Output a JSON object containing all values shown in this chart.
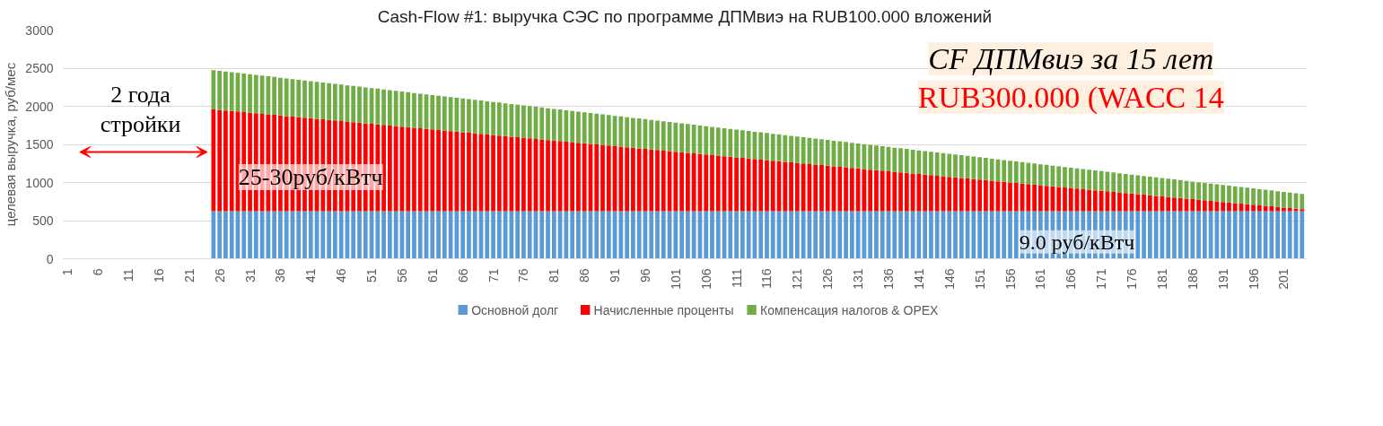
{
  "chart_data": {
    "type": "bar",
    "stacked": true,
    "title": "Cash-Flow #1: выручка СЭС по программе ДПМвиэ на RUB100.000 вложений",
    "ylabel": "целевая выручка, руб/мес",
    "categories": [
      "1",
      null,
      null,
      null,
      null,
      "6",
      null,
      null,
      null,
      null,
      "11",
      null,
      null,
      null,
      null,
      "16",
      null,
      null,
      null,
      null,
      "21",
      null,
      null,
      null,
      null,
      "26",
      null,
      null,
      null,
      null,
      "31",
      null,
      null,
      null,
      null,
      "36",
      null,
      null,
      null,
      null,
      "41",
      null,
      null,
      null,
      null,
      "46",
      null,
      null,
      null,
      null,
      "51",
      null,
      null,
      null,
      null,
      "56",
      null,
      null,
      null,
      null,
      "61",
      null,
      null,
      null,
      null,
      "66",
      null,
      null,
      null,
      null,
      "71",
      null,
      null,
      null,
      null,
      "76",
      null,
      null,
      null,
      null,
      "81",
      null,
      null,
      null,
      null,
      "86",
      null,
      null,
      null,
      null,
      "91",
      null,
      null,
      null,
      null,
      "96",
      null,
      null,
      null,
      null,
      "101",
      null,
      null,
      null,
      null,
      "106",
      null,
      null,
      null,
      null,
      "111",
      null,
      null,
      null,
      null,
      "116",
      null,
      null,
      null,
      null,
      "121",
      null,
      null,
      null,
      null,
      "126",
      null,
      null,
      null,
      null,
      "131",
      null,
      null,
      null,
      null,
      "136",
      null,
      null,
      null,
      null,
      "141",
      null,
      null,
      null,
      null,
      "146",
      null,
      null,
      null,
      null,
      "151",
      null,
      null,
      null,
      null,
      "156",
      null,
      null,
      null,
      null,
      "161",
      null,
      null,
      null,
      null,
      "166",
      null,
      null,
      null,
      null,
      "171",
      null,
      null,
      null,
      null,
      "176",
      null,
      null,
      null,
      null,
      "181",
      null,
      null,
      null,
      null,
      "186",
      null,
      null,
      null,
      null,
      "191",
      null,
      null,
      null,
      null,
      "196",
      null,
      null,
      null,
      null,
      "201",
      null,
      null,
      null
    ],
    "series": [
      {
        "name": "Основной долг",
        "color": "#5b9bd5",
        "values": [
          null,
          null,
          null,
          null,
          null,
          null,
          null,
          null,
          null,
          null,
          null,
          null,
          null,
          null,
          null,
          null,
          null,
          null,
          null,
          null,
          null,
          null,
          null,
          null,
          625,
          625,
          625,
          625,
          625,
          625,
          625,
          625,
          625,
          625,
          625,
          625,
          625,
          625,
          625,
          625,
          625,
          625,
          625,
          625,
          625,
          625,
          625,
          625,
          625,
          625,
          625,
          625,
          625,
          625,
          625,
          625,
          625,
          625,
          625,
          625,
          625,
          625,
          625,
          625,
          625,
          625,
          625,
          625,
          625,
          625,
          625,
          625,
          625,
          625,
          625,
          625,
          625,
          625,
          625,
          625,
          625,
          625,
          625,
          625,
          625,
          625,
          625,
          625,
          625,
          625,
          625,
          625,
          625,
          625,
          625,
          625,
          625,
          625,
          625,
          625,
          625,
          625,
          625,
          625,
          625,
          625,
          625,
          625,
          625,
          625,
          625,
          625,
          625,
          625,
          625,
          625,
          625,
          625,
          625,
          625,
          625,
          625,
          625,
          625,
          625,
          625,
          625,
          625,
          625,
          625,
          625,
          625,
          625,
          625,
          625,
          625,
          625,
          625,
          625,
          625,
          625,
          625,
          625,
          625,
          625,
          625,
          625,
          625,
          625,
          625,
          625,
          625,
          625,
          625,
          625,
          625,
          625,
          625,
          625,
          625,
          625,
          625,
          625,
          625,
          625,
          625,
          625,
          625,
          625,
          625,
          625,
          625,
          625,
          625,
          625,
          625,
          625,
          625,
          625,
          625,
          625,
          625,
          625,
          625,
          625,
          625,
          625,
          625,
          625,
          625,
          625,
          625,
          625,
          625,
          625,
          625,
          625,
          625,
          625,
          625,
          625,
          625,
          625,
          625
        ]
      },
      {
        "name": "Начисленные проценты",
        "color": "#ff0000",
        "values": [
          null,
          null,
          null,
          null,
          null,
          null,
          null,
          null,
          null,
          null,
          null,
          null,
          null,
          null,
          null,
          null,
          null,
          null,
          null,
          null,
          null,
          null,
          null,
          null,
          1335,
          1328,
          1320,
          1313,
          1306,
          1298,
          1291,
          1284,
          1276,
          1269,
          1262,
          1255,
          1247,
          1240,
          1233,
          1225,
          1218,
          1211,
          1203,
          1196,
          1189,
          1182,
          1174,
          1167,
          1160,
          1152,
          1145,
          1138,
          1130,
          1123,
          1115,
          1108,
          1101,
          1093,
          1086,
          1079,
          1071,
          1064,
          1057,
          1049,
          1042,
          1035,
          1027,
          1020,
          1013,
          1005,
          998,
          991,
          983,
          976,
          969,
          962,
          954,
          947,
          940,
          932,
          925,
          918,
          910,
          903,
          896,
          889,
          881,
          874,
          867,
          859,
          852,
          845,
          837,
          830,
          823,
          816,
          808,
          801,
          794,
          786,
          779,
          772,
          764,
          757,
          749,
          742,
          735,
          727,
          720,
          713,
          705,
          698,
          691,
          683,
          676,
          669,
          661,
          654,
          647,
          639,
          632,
          625,
          617,
          610,
          603,
          596,
          588,
          581,
          574,
          566,
          559,
          552,
          544,
          537,
          530,
          523,
          515,
          508,
          501,
          493,
          486,
          479,
          471,
          464,
          457,
          450,
          442,
          435,
          428,
          420,
          413,
          406,
          398,
          391,
          383,
          376,
          369,
          361,
          354,
          347,
          339,
          332,
          325,
          317,
          310,
          303,
          295,
          288,
          281,
          273,
          266,
          259,
          251,
          244,
          237,
          230,
          222,
          215,
          208,
          200,
          193,
          186,
          178,
          171,
          164,
          157,
          149,
          142,
          135,
          127,
          120,
          113,
          105,
          98,
          91,
          84,
          76,
          69,
          62,
          54,
          47,
          40,
          32,
          25
        ]
      },
      {
        "name": "Компенсация налогов & OPEX",
        "color": "#70ad47",
        "values": [
          null,
          null,
          null,
          null,
          null,
          null,
          null,
          null,
          null,
          null,
          null,
          null,
          null,
          null,
          null,
          null,
          null,
          null,
          null,
          null,
          null,
          null,
          null,
          null,
          515,
          513,
          511,
          510,
          508,
          506,
          504,
          503,
          501,
          499,
          497,
          495,
          493,
          492,
          490,
          488,
          486,
          485,
          483,
          481,
          480,
          478,
          476,
          475,
          473,
          471,
          469,
          468,
          466,
          464,
          462,
          460,
          458,
          457,
          455,
          453,
          451,
          450,
          448,
          446,
          445,
          443,
          441,
          440,
          438,
          436,
          434,
          433,
          431,
          429,
          427,
          425,
          423,
          422,
          420,
          418,
          416,
          415,
          413,
          411,
          409,
          407,
          405,
          404,
          402,
          400,
          398,
          397,
          395,
          393,
          392,
          390,
          388,
          387,
          385,
          383,
          381,
          380,
          378,
          376,
          374,
          372,
          370,
          369,
          367,
          365,
          363,
          362,
          360,
          358,
          357,
          355,
          353,
          352,
          350,
          348,
          346,
          345,
          343,
          341,
          339,
          337,
          335,
          334,
          332,
          330,
          328,
          327,
          325,
          323,
          321,
          319,
          317,
          316,
          314,
          312,
          310,
          309,
          307,
          305,
          304,
          302,
          300,
          299,
          297,
          295,
          293,
          292,
          290,
          288,
          286,
          284,
          282,
          281,
          279,
          277,
          275,
          274,
          272,
          270,
          269,
          267,
          265,
          264,
          262,
          260,
          258,
          257,
          255,
          253,
          251,
          249,
          247,
          246,
          244,
          242,
          240,
          239,
          237,
          235,
          233,
          231,
          229,
          228,
          226,
          224,
          222,
          221,
          219,
          217,
          216,
          214,
          212,
          211,
          209,
          207,
          205,
          204,
          202,
          200
        ]
      }
    ],
    "ylim": [
      0,
      3000
    ],
    "yticks": [
      0,
      500,
      1000,
      1500,
      2000,
      2500,
      3000
    ],
    "grid": "y",
    "legend": "bottom",
    "annotations": [
      "2 года\nстройки",
      "25-30руб/кВтч",
      "9.0 руб/кВтч",
      "CF ДПМвиэ за 15 лет",
      "RUB300.000 (WACC 14"
    ]
  }
}
